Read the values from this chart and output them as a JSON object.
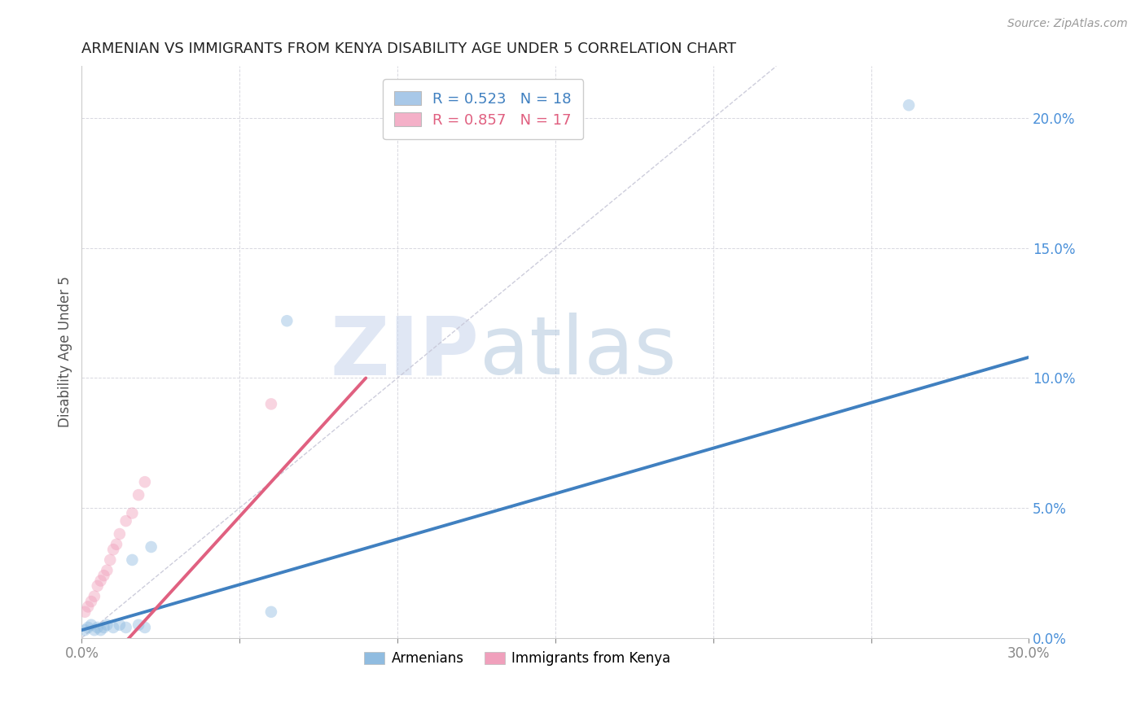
{
  "title": "ARMENIAN VS IMMIGRANTS FROM KENYA DISABILITY AGE UNDER 5 CORRELATION CHART",
  "source": "Source: ZipAtlas.com",
  "ylabel": "Disability Age Under 5",
  "xlim": [
    0,
    0.3
  ],
  "ylim": [
    0,
    0.22
  ],
  "xticks": [
    0.0,
    0.05,
    0.1,
    0.15,
    0.2,
    0.25,
    0.3
  ],
  "xtick_labels_show": [
    "0.0%",
    "",
    "",
    "",
    "",
    "",
    "30.0%"
  ],
  "ytick_labels_right": [
    "0.0%",
    "5.0%",
    "10.0%",
    "15.0%",
    "20.0%"
  ],
  "yticks_right": [
    0.0,
    0.05,
    0.1,
    0.15,
    0.2
  ],
  "legend1_label": "R = 0.523   N = 18",
  "legend2_label": "R = 0.857   N = 17",
  "legend1_color": "#a8c8e8",
  "legend2_color": "#f4b0c8",
  "blue_scatter_color": "#90bce0",
  "pink_scatter_color": "#f0a0bc",
  "blue_line_color": "#4080c0",
  "pink_line_color": "#e06080",
  "ref_line_color": "#c8c8d8",
  "background_color": "#ffffff",
  "grid_color": "#d8d8e0",
  "armenian_x": [
    0.001,
    0.002,
    0.003,
    0.004,
    0.005,
    0.006,
    0.007,
    0.008,
    0.01,
    0.012,
    0.014,
    0.016,
    0.018,
    0.02,
    0.022,
    0.06,
    0.065,
    0.262
  ],
  "armenian_y": [
    0.003,
    0.004,
    0.005,
    0.003,
    0.004,
    0.003,
    0.004,
    0.005,
    0.004,
    0.005,
    0.004,
    0.03,
    0.005,
    0.004,
    0.035,
    0.01,
    0.122,
    0.205
  ],
  "kenya_x": [
    0.001,
    0.002,
    0.003,
    0.004,
    0.005,
    0.006,
    0.007,
    0.008,
    0.009,
    0.01,
    0.011,
    0.012,
    0.014,
    0.016,
    0.018,
    0.02,
    0.06
  ],
  "kenya_y": [
    0.01,
    0.012,
    0.014,
    0.016,
    0.02,
    0.022,
    0.024,
    0.026,
    0.03,
    0.034,
    0.036,
    0.04,
    0.045,
    0.048,
    0.055,
    0.06,
    0.09
  ],
  "marker_size": 110,
  "scatter_alpha": 0.45,
  "line_width": 2.8,
  "watermark_zip": "ZIP",
  "watermark_atlas": "atlas",
  "watermark_color_zip": "#ccd8ee",
  "watermark_color_atlas": "#b8cce0",
  "watermark_alpha": 0.6
}
